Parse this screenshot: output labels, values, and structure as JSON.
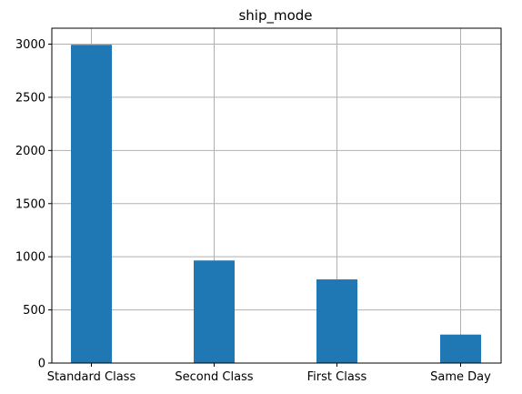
{
  "chart_data": {
    "type": "bar",
    "title": "ship_mode",
    "xlabel": "",
    "ylabel": "",
    "categories": [
      "Standard Class",
      "Second Class",
      "First Class",
      "Same Day"
    ],
    "values": [
      2994,
      965,
      787,
      268
    ],
    "ylim": [
      0,
      3150
    ],
    "yticks": [
      0,
      500,
      1000,
      1500,
      2000,
      2500,
      3000
    ],
    "grid": true,
    "legend": "none",
    "bar_color": "#1f77b4",
    "grid_color": "#b0b0b0"
  }
}
